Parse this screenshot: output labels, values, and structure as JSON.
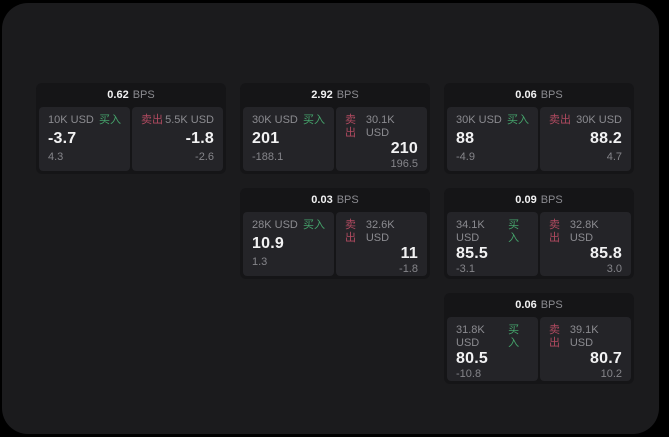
{
  "colors": {
    "page_bg": "#000000",
    "window_bg": "#1b1b1d",
    "card_bg": "#151517",
    "side_bg": "#242428",
    "text_primary": "#f2f2f3",
    "text_secondary": "#8b8b90",
    "text_tertiary": "#85858a",
    "buy": "#45a36b",
    "sell": "#b04a60"
  },
  "labels": {
    "bps": "BPS",
    "buy": "买入",
    "sell": "卖出"
  },
  "cards": [
    {
      "bps": "0.62",
      "grid": {
        "row": 1,
        "col": 1
      },
      "buy": {
        "amount": "10K USD",
        "price": "-3.7",
        "delta": "4.3"
      },
      "sell": {
        "amount": "5.5K USD",
        "price": "-1.8",
        "delta": "-2.6"
      }
    },
    {
      "bps": "2.92",
      "grid": {
        "row": 1,
        "col": 2
      },
      "buy": {
        "amount": "30K USD",
        "price": "201",
        "delta": "-188.1"
      },
      "sell": {
        "amount": "30.1K USD",
        "price": "210",
        "delta": "196.5"
      }
    },
    {
      "bps": "0.06",
      "grid": {
        "row": 1,
        "col": 3
      },
      "buy": {
        "amount": "30K USD",
        "price": "88",
        "delta": "-4.9"
      },
      "sell": {
        "amount": "30K USD",
        "price": "88.2",
        "delta": "4.7"
      }
    },
    {
      "bps": "0.03",
      "grid": {
        "row": 2,
        "col": 2
      },
      "buy": {
        "amount": "28K USD",
        "price": "10.9",
        "delta": "1.3"
      },
      "sell": {
        "amount": "32.6K USD",
        "price": "11",
        "delta": "-1.8"
      }
    },
    {
      "bps": "0.09",
      "grid": {
        "row": 2,
        "col": 3
      },
      "buy": {
        "amount": "34.1K USD",
        "price": "85.5",
        "delta": "-3.1"
      },
      "sell": {
        "amount": "32.8K USD",
        "price": "85.8",
        "delta": "3.0"
      }
    },
    {
      "bps": "0.06",
      "grid": {
        "row": 3,
        "col": 3
      },
      "buy": {
        "amount": "31.8K USD",
        "price": "80.5",
        "delta": "-10.8"
      },
      "sell": {
        "amount": "39.1K USD",
        "price": "80.7",
        "delta": "10.2"
      }
    }
  ]
}
